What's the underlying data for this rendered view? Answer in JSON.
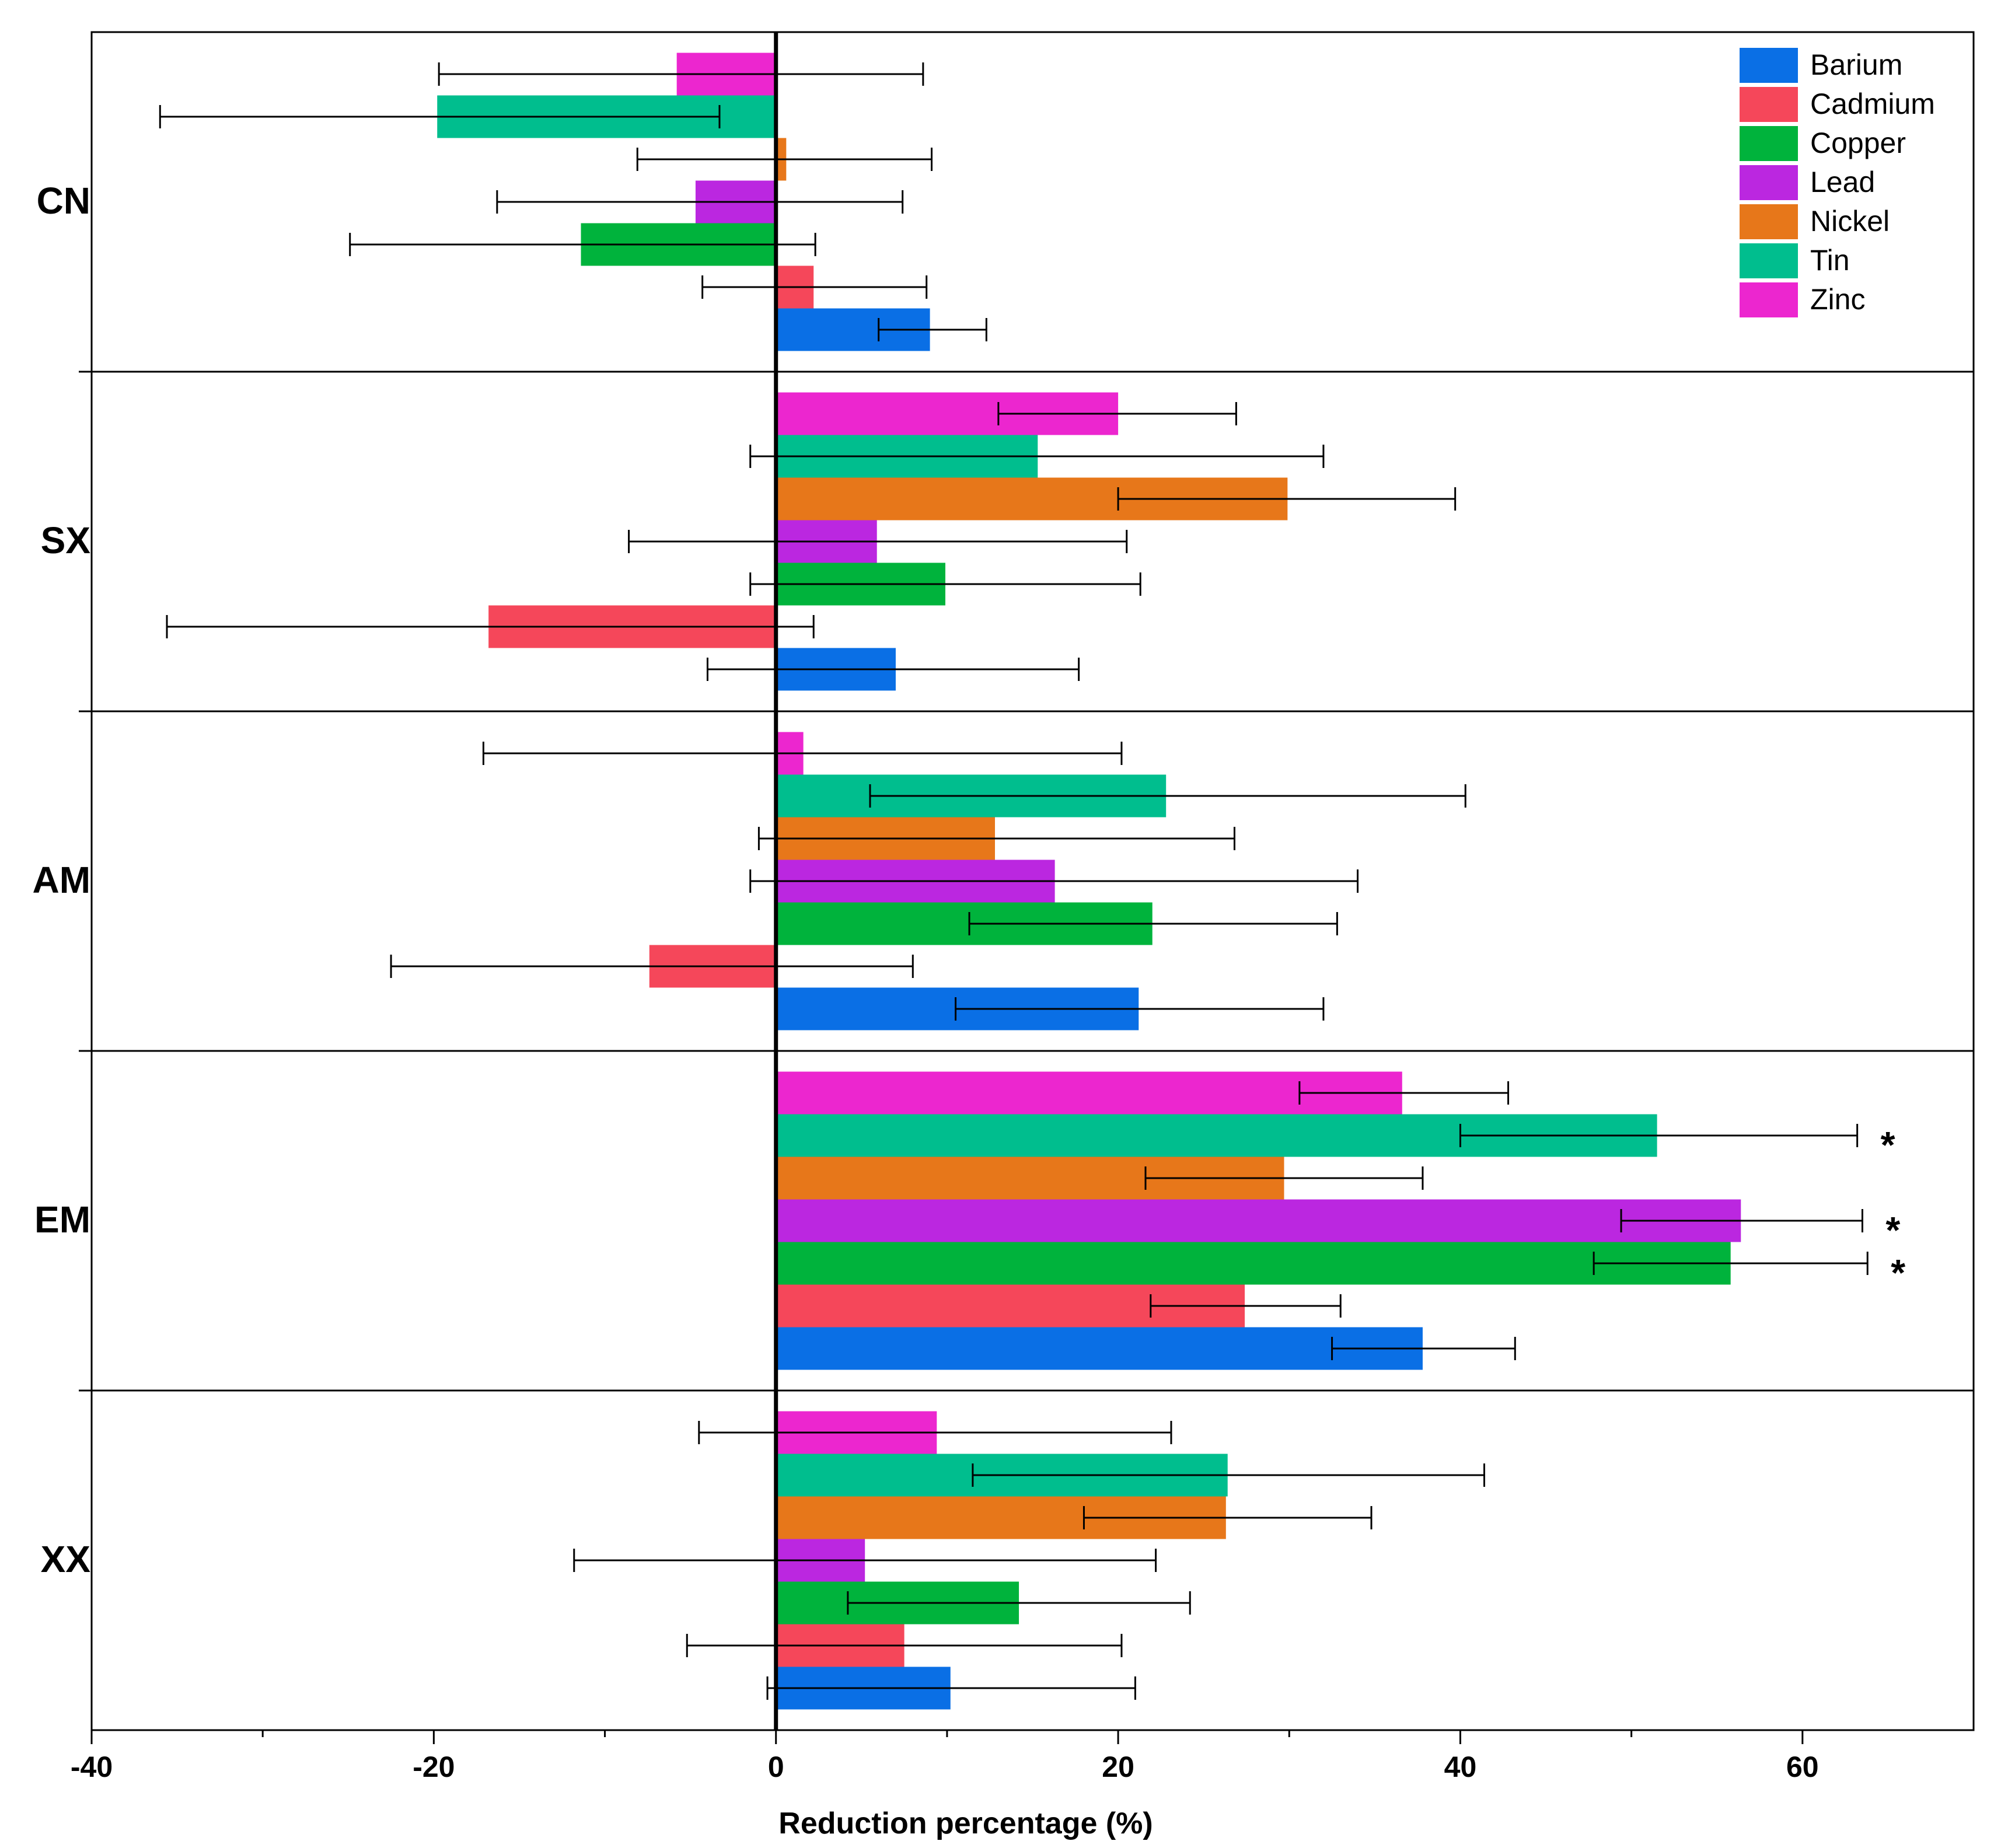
{
  "chart_data": {
    "type": "bar",
    "orientation": "horizontal",
    "xlabel": "Reduction percentage (%)",
    "ylabel": "",
    "xlim": [
      -40,
      70
    ],
    "x_ticks": [
      -40,
      -20,
      0,
      20,
      40,
      60
    ],
    "x_tick_labels": [
      "-40",
      "-20",
      "0",
      "20",
      "40",
      "60"
    ],
    "x_minor_ticks": [
      -30,
      -10,
      10,
      30,
      50
    ],
    "categories": [
      "CN",
      "SX",
      "AM",
      "EM",
      "XX"
    ],
    "legend_position": "top-right",
    "series": [
      {
        "name": "Barium",
        "color": "#0A6FE5",
        "values": [
          9,
          7,
          21.2,
          37.8,
          10.2
        ],
        "err_low": [
          6,
          -4,
          10.5,
          32.5,
          -0.5
        ],
        "err_high": [
          12.3,
          17.7,
          32,
          43.2,
          21
        ]
      },
      {
        "name": "Cadmium",
        "color": "#F5475A",
        "values": [
          2.2,
          -16.8,
          -7.4,
          27.4,
          7.5
        ],
        "err_low": [
          -4.3,
          -35.6,
          -22.5,
          21.9,
          -5.2
        ],
        "err_high": [
          8.8,
          2.2,
          8,
          33,
          20.2
        ]
      },
      {
        "name": "Copper",
        "color": "#00B33C",
        "values": [
          -11.4,
          9.9,
          22,
          55.8,
          14.2
        ],
        "err_low": [
          -24.9,
          -1.5,
          11.3,
          47.8,
          4.2
        ],
        "err_high": [
          2.3,
          21.3,
          32.8,
          63.8,
          24.2
        ]
      },
      {
        "name": "Lead",
        "color": "#BB27E0",
        "values": [
          -4.7,
          5.9,
          16.3,
          56.4,
          5.2
        ],
        "err_low": [
          -16.3,
          -8.6,
          -1.5,
          49.4,
          -11.8
        ],
        "err_high": [
          7.4,
          20.5,
          34,
          63.5,
          22.2
        ]
      },
      {
        "name": "Nickel",
        "color": "#E7771A",
        "values": [
          0.6,
          29.9,
          12.8,
          29.7,
          26.3
        ],
        "err_low": [
          -8.1,
          20,
          -1,
          21.6,
          18
        ],
        "err_high": [
          9.1,
          39.7,
          26.8,
          37.8,
          34.8
        ]
      },
      {
        "name": "Tin",
        "color": "#00BE8E",
        "values": [
          -19.8,
          15.3,
          22.8,
          51.5,
          26.4
        ],
        "err_low": [
          -36,
          -1.5,
          5.5,
          40,
          11.5
        ],
        "err_high": [
          -3.3,
          32,
          40.3,
          63.2,
          41.4
        ]
      },
      {
        "name": "Zinc",
        "color": "#EC26CF",
        "values": [
          -5.8,
          20,
          1.6,
          36.6,
          9.4
        ],
        "err_low": [
          -19.7,
          13,
          -17.1,
          30.6,
          -4.5
        ],
        "err_high": [
          8.6,
          26.9,
          20.2,
          42.8,
          23.1
        ]
      }
    ],
    "annotations": [
      {
        "text": "*",
        "category": "EM",
        "series": "Tin"
      },
      {
        "text": "*",
        "category": "EM",
        "series": "Lead"
      },
      {
        "text": "*",
        "category": "EM",
        "series": "Copper"
      }
    ]
  }
}
